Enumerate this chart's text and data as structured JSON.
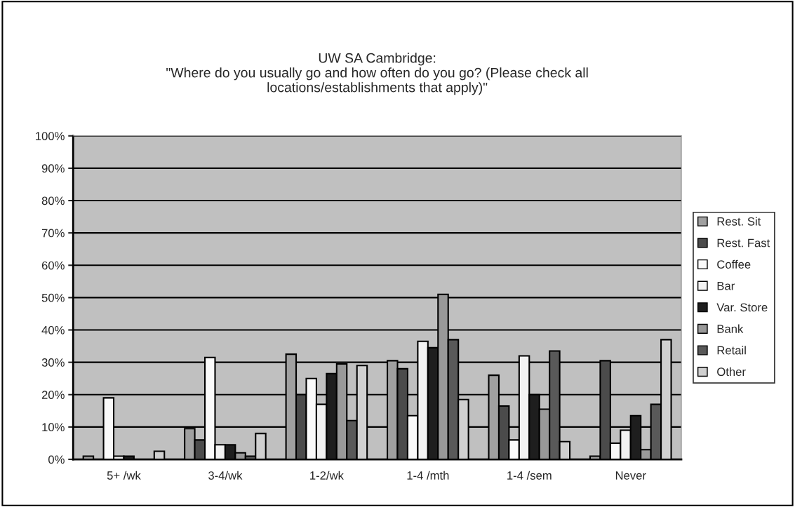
{
  "chart_data": {
    "type": "bar",
    "title": "UW SA Cambridge:\n\"Where do you usually go and how often do you go? (Please check all\nlocations/establishments that apply)\"",
    "categories": [
      "5+ /wk",
      "3-4/wk",
      "1-2/wk",
      "1-4 /mth",
      "1-4 /sem",
      "Never"
    ],
    "series": [
      {
        "name": "Rest. Sit",
        "color": "#a0a0a0",
        "values": [
          1,
          9.5,
          32.5,
          30.5,
          26,
          1
        ]
      },
      {
        "name": "Rest. Fast",
        "color": "#4b4b4b",
        "values": [
          null,
          6,
          20,
          28,
          16.5,
          30.5
        ]
      },
      {
        "name": "Coffee",
        "color": "#fafafa",
        "values": [
          19,
          31.5,
          25,
          13.5,
          6,
          5
        ]
      },
      {
        "name": "Bar",
        "color": "#f2f2f2",
        "values": [
          1,
          4.5,
          17,
          36.5,
          32,
          9
        ]
      },
      {
        "name": "Var. Store",
        "color": "#1e1e1e",
        "values": [
          1,
          4.5,
          26.5,
          34.5,
          20,
          13.5
        ]
      },
      {
        "name": "Bank",
        "color": "#999999",
        "values": [
          null,
          2,
          29.5,
          51,
          15.5,
          3
        ]
      },
      {
        "name": "Retail",
        "color": "#595959",
        "values": [
          null,
          1,
          12,
          37,
          33.5,
          17
        ]
      },
      {
        "name": "Other",
        "color": "#d0d0d0",
        "values": [
          2.5,
          8,
          29,
          18.5,
          5.5,
          37
        ]
      }
    ],
    "ylim": [
      0,
      100
    ],
    "yticks": [
      {
        "value": 0,
        "label": "0%"
      },
      {
        "value": 10,
        "label": "10%"
      },
      {
        "value": 20,
        "label": "20%"
      },
      {
        "value": 30,
        "label": "30%"
      },
      {
        "value": 40,
        "label": "40%"
      },
      {
        "value": 50,
        "label": "50%"
      },
      {
        "value": 60,
        "label": "60%"
      },
      {
        "value": 70,
        "label": "70%"
      },
      {
        "value": 80,
        "label": "80%"
      },
      {
        "value": 90,
        "label": "90%"
      },
      {
        "value": 100,
        "label": "100%"
      }
    ],
    "grid": "y",
    "legend": "right"
  }
}
